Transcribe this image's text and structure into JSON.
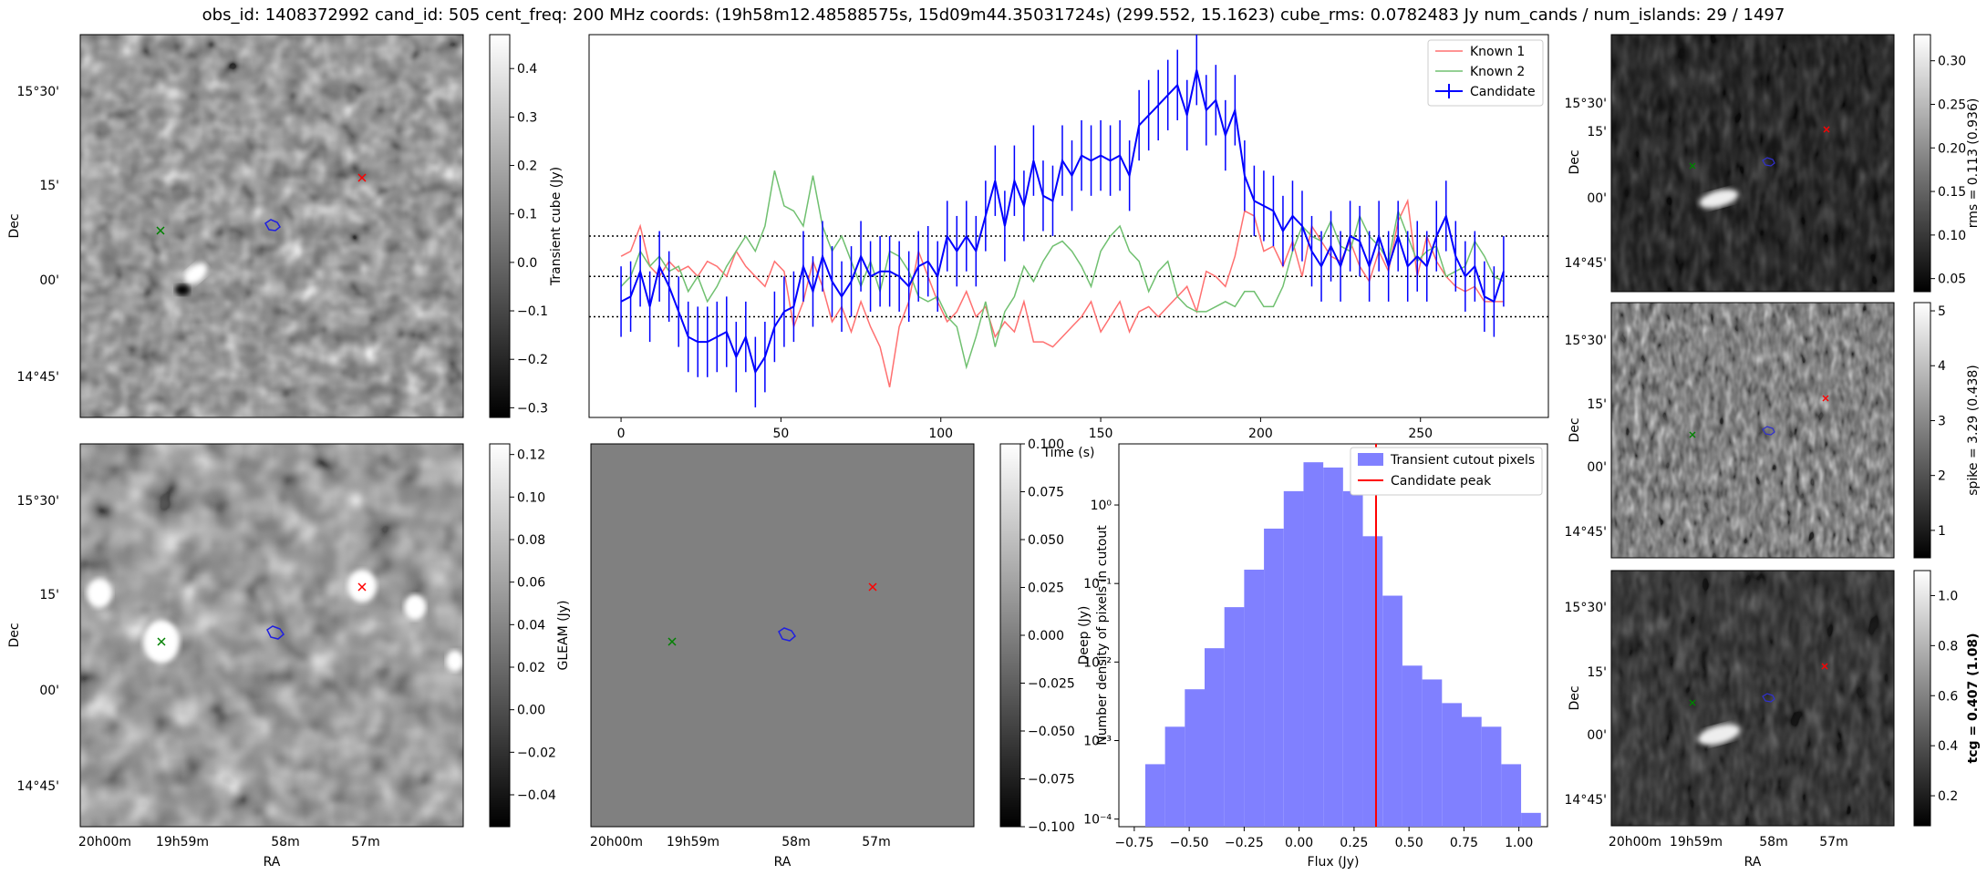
{
  "suptitle": "obs_id: 1408372992 cand_id: 505 cent_freq: 200 MHz coords: (19h58m12.48588575s, 15d09m44.35031724s) (299.552, 15.1623) cube_rms: 0.0782483 Jy num_cands / num_islands: 29 / 1497",
  "panels": {
    "transient": {
      "ylabel": "Dec",
      "ytick_labels": [
        "15°30'",
        "15'",
        "00'",
        "14°45'"
      ],
      "colorbar_label": "Transient cube (Jy)",
      "colorbar_ticks": [
        "0.4",
        "0.3",
        "0.2",
        "0.1",
        "0.0",
        "−0.1",
        "−0.2",
        "−0.3"
      ],
      "colorbar_range": [
        -0.32,
        0.47
      ]
    },
    "gleam_bg": {
      "ylabel": "Dec",
      "ytick_labels": [
        "15°30'",
        "15'",
        "00'",
        "14°45'"
      ],
      "xlabel": "RA",
      "xtick_labels": [
        "20h00m",
        "19h59m",
        "58m",
        "57m"
      ],
      "colorbar_label": "GLEAM (Jy)",
      "colorbar_ticks": [
        "0.12",
        "0.10",
        "0.08",
        "0.06",
        "0.04",
        "0.02",
        "0.00",
        "−0.02",
        "−0.04"
      ],
      "colorbar_range": [
        -0.055,
        0.125
      ]
    },
    "deep": {
      "ylabel": "Deep (Jy)",
      "xlabel": "RA",
      "xtick_labels": [
        "20h00m",
        "19h59m",
        "58m",
        "57m"
      ],
      "colorbar_ticks": [
        "0.100",
        "0.075",
        "0.050",
        "0.025",
        "0.000",
        "−0.025",
        "−0.050",
        "−0.075",
        "−0.100"
      ],
      "colorbar_range": [
        -0.1,
        0.1
      ]
    },
    "rms": {
      "ylabel": "Dec",
      "ytick_labels": [
        "15°30'",
        "15'",
        "00'",
        "14°45'"
      ],
      "colorbar_label": "rms = 0.113 (0.936)",
      "colorbar_ticks": [
        "0.30",
        "0.25",
        "0.20",
        "0.15",
        "0.10",
        "0.05"
      ],
      "colorbar_range": [
        0.035,
        0.33
      ]
    },
    "spike": {
      "ylabel": "Dec",
      "ytick_labels": [
        "15°30'",
        "15'",
        "00'",
        "14°45'"
      ],
      "colorbar_label": "spike = 3.29 (0.438)",
      "colorbar_ticks": [
        "5",
        "4",
        "3",
        "2",
        "1"
      ],
      "colorbar_range": [
        0.5,
        5.15
      ]
    },
    "tcg": {
      "ylabel": "Dec",
      "ytick_labels": [
        "15°30'",
        "15'",
        "00'",
        "14°45'"
      ],
      "xlabel": "RA",
      "xtick_labels": [
        "20h00m",
        "19h59m",
        "58m",
        "57m"
      ],
      "colorbar_label": "tcg = 0.407 (1.08)",
      "colorbar_ticks": [
        "1.0",
        "0.8",
        "0.6",
        "0.4",
        "0.2"
      ],
      "colorbar_range": [
        0.08,
        1.1
      ]
    }
  },
  "markers": {
    "known1_color": "#ff0000",
    "known2_color": "#008000",
    "candidate_color": "#0000ff"
  },
  "chart_data": [
    {
      "type": "line",
      "title": "",
      "xlabel": "Time (s)",
      "ylabel": "",
      "xlim": [
        -10,
        290
      ],
      "ylim": [
        -0.28,
        0.48
      ],
      "xticks": [
        0,
        50,
        100,
        150,
        200,
        250
      ],
      "hlines": [
        0.08,
        0.0,
        -0.08
      ],
      "legend": [
        "Known 1",
        "Known 2",
        "Candidate"
      ],
      "legend_loc": "top-right",
      "series": [
        {
          "name": "Known 1",
          "color": "#ff7070",
          "x": [
            0,
            3,
            6,
            9,
            12,
            15,
            18,
            21,
            24,
            27,
            30,
            33,
            36,
            39,
            42,
            45,
            48,
            51,
            54,
            57,
            60,
            63,
            66,
            69,
            72,
            75,
            78,
            81,
            84,
            87,
            90,
            93,
            96,
            99,
            102,
            105,
            108,
            111,
            114,
            117,
            120,
            123,
            126,
            129,
            132,
            135,
            138,
            141,
            144,
            147,
            150,
            153,
            156,
            159,
            162,
            165,
            168,
            171,
            174,
            177,
            180,
            183,
            186,
            189,
            192,
            195,
            198,
            201,
            204,
            207,
            210,
            213,
            216,
            219,
            222,
            225,
            228,
            231,
            234,
            237,
            240,
            243,
            246,
            249,
            252,
            255,
            258,
            261,
            264,
            267,
            270,
            273,
            276
          ],
          "values": [
            0.04,
            0.05,
            0.1,
            0.02,
            0.0,
            0.03,
            0.01,
            0.02,
            0.0,
            0.03,
            0.02,
            0.0,
            0.05,
            0.02,
            0.0,
            -0.02,
            0.03,
            0.01,
            -0.1,
            -0.05,
            0.03,
            -0.02,
            -0.09,
            -0.06,
            -0.11,
            -0.05,
            -0.1,
            -0.14,
            -0.22,
            -0.1,
            -0.05,
            0.05,
            0.0,
            -0.05,
            -0.09,
            -0.07,
            -0.03,
            -0.08,
            -0.06,
            -0.12,
            -0.09,
            -0.11,
            -0.05,
            -0.13,
            -0.13,
            -0.14,
            -0.12,
            -0.1,
            -0.08,
            -0.05,
            -0.11,
            -0.08,
            -0.05,
            -0.11,
            -0.07,
            -0.06,
            -0.08,
            -0.06,
            -0.04,
            -0.02,
            -0.07,
            0.01,
            0.0,
            -0.02,
            0.04,
            0.13,
            0.12,
            0.05,
            0.06,
            0.02,
            0.07,
            0.0,
            0.1,
            0.07,
            0.04,
            0.03,
            0.07,
            0.02,
            -0.01,
            0.05,
            0.01,
            0.11,
            0.15,
            0.0,
            0.08,
            0.03,
            0.0,
            -0.02,
            -0.03,
            -0.02,
            -0.05,
            -0.05,
            -0.05
          ]
        },
        {
          "name": "Known 2",
          "color": "#70c070",
          "x": [
            0,
            3,
            6,
            9,
            12,
            15,
            18,
            21,
            24,
            27,
            30,
            33,
            36,
            39,
            42,
            45,
            48,
            51,
            54,
            57,
            60,
            63,
            66,
            69,
            72,
            75,
            78,
            81,
            84,
            87,
            90,
            93,
            96,
            99,
            102,
            105,
            108,
            111,
            114,
            117,
            120,
            123,
            126,
            129,
            132,
            135,
            138,
            141,
            144,
            147,
            150,
            153,
            156,
            159,
            162,
            165,
            168,
            171,
            174,
            177,
            180,
            183,
            186,
            189,
            192,
            195,
            198,
            201,
            204,
            207,
            210,
            213,
            216,
            219,
            222,
            225,
            228,
            231,
            234,
            237,
            240,
            243,
            246,
            249,
            252,
            255,
            258,
            261,
            264,
            267,
            270,
            273,
            276
          ],
          "values": [
            -0.02,
            0.0,
            0.05,
            0.02,
            0.04,
            0.01,
            0.02,
            -0.03,
            0.0,
            -0.05,
            -0.02,
            0.02,
            0.05,
            0.08,
            0.05,
            0.1,
            0.21,
            0.14,
            0.13,
            0.1,
            0.2,
            0.1,
            0.05,
            0.08,
            0.03,
            -0.02,
            0.03,
            -0.03,
            0.05,
            0.04,
            0.01,
            -0.04,
            -0.05,
            -0.04,
            -0.08,
            -0.1,
            -0.18,
            -0.12,
            -0.05,
            -0.14,
            -0.07,
            -0.04,
            0.02,
            -0.01,
            0.03,
            0.06,
            0.07,
            0.05,
            0.02,
            -0.02,
            0.05,
            0.08,
            0.1,
            0.05,
            0.03,
            -0.03,
            0.01,
            0.03,
            -0.04,
            -0.06,
            -0.07,
            -0.07,
            -0.06,
            -0.05,
            -0.06,
            -0.03,
            -0.03,
            -0.06,
            -0.06,
            -0.02,
            0.05,
            0.1,
            0.08,
            0.07,
            0.11,
            0.06,
            0.05,
            0.12,
            0.08,
            0.06,
            0.03,
            0.13,
            0.08,
            0.03,
            0.05,
            0.06,
            0.0,
            0.01,
            0.02,
            0.07,
            0.04,
            0.0,
            -0.01
          ]
        },
        {
          "name": "Candidate",
          "color": "#0000ff",
          "x": [
            0,
            3,
            6,
            9,
            12,
            15,
            18,
            21,
            24,
            27,
            30,
            33,
            36,
            39,
            42,
            45,
            48,
            51,
            54,
            57,
            60,
            63,
            66,
            69,
            72,
            75,
            78,
            81,
            84,
            87,
            90,
            93,
            96,
            99,
            102,
            105,
            108,
            111,
            114,
            117,
            120,
            123,
            126,
            129,
            132,
            135,
            138,
            141,
            144,
            147,
            150,
            153,
            156,
            159,
            162,
            165,
            168,
            171,
            174,
            177,
            180,
            183,
            186,
            189,
            192,
            195,
            198,
            201,
            204,
            207,
            210,
            213,
            216,
            219,
            222,
            225,
            228,
            231,
            234,
            237,
            240,
            243,
            246,
            249,
            252,
            255,
            258,
            261,
            264,
            267,
            270,
            273,
            276
          ],
          "values": [
            -0.05,
            -0.04,
            0.01,
            -0.06,
            0.02,
            -0.02,
            -0.07,
            -0.12,
            -0.13,
            -0.13,
            -0.12,
            -0.11,
            -0.16,
            -0.12,
            -0.19,
            -0.16,
            -0.1,
            -0.07,
            -0.06,
            0.02,
            -0.03,
            0.04,
            -0.01,
            -0.04,
            -0.01,
            0.04,
            0.0,
            0.01,
            0.01,
            0.0,
            -0.02,
            0.02,
            0.03,
            0.0,
            0.08,
            0.05,
            0.08,
            0.05,
            0.12,
            0.19,
            0.1,
            0.19,
            0.14,
            0.23,
            0.16,
            0.15,
            0.23,
            0.2,
            0.24,
            0.23,
            0.24,
            0.23,
            0.24,
            0.2,
            0.3,
            0.32,
            0.34,
            0.36,
            0.38,
            0.32,
            0.41,
            0.33,
            0.35,
            0.28,
            0.33,
            0.2,
            0.15,
            0.14,
            0.13,
            0.09,
            0.12,
            0.1,
            0.05,
            0.02,
            0.06,
            0.02,
            0.08,
            0.07,
            0.02,
            0.08,
            0.02,
            0.08,
            0.02,
            0.04,
            0.02,
            0.08,
            0.12,
            0.04,
            0.0,
            0.02,
            -0.04,
            -0.05,
            0.01
          ],
          "errors": 0.07
        }
      ]
    },
    {
      "type": "bar",
      "title": "",
      "xlabel": "Flux (Jy)",
      "ylabel": "Number density of pixels in cutout",
      "yscale": "log",
      "xlim": [
        -0.82,
        1.13
      ],
      "ylim": [
        8e-05,
        6
      ],
      "xticks": [
        -0.75,
        -0.5,
        -0.25,
        0.0,
        0.25,
        0.5,
        0.75,
        1.0
      ],
      "xtick_labels": [
        "−0.75",
        "−0.50",
        "−0.25",
        "0.00",
        "0.25",
        "0.50",
        "0.75",
        "1.00"
      ],
      "ytick_labels": [
        "10⁻⁴",
        "10⁻³",
        "10⁻²",
        "10⁻¹",
        "10⁰"
      ],
      "bin_edges": [
        -0.7,
        -0.61,
        -0.52,
        -0.43,
        -0.34,
        -0.25,
        -0.16,
        -0.07,
        0.02,
        0.11,
        0.2,
        0.29,
        0.38,
        0.47,
        0.56,
        0.65,
        0.74,
        0.83,
        0.92,
        1.01,
        1.1
      ],
      "values": [
        0.0005,
        0.0015,
        0.0045,
        0.015,
        0.05,
        0.15,
        0.5,
        1.5,
        3.5,
        3.0,
        1.5,
        0.4,
        0.07,
        0.009,
        0.006,
        0.003,
        0.002,
        0.0015,
        0.0005,
        0.00012
      ],
      "candidate_peak": 0.35,
      "legend": [
        "Transient cutout pixels",
        "Candidate peak"
      ],
      "legend_loc": "top-right",
      "bar_color": "#8080ff",
      "peak_color": "#ff0000"
    }
  ]
}
